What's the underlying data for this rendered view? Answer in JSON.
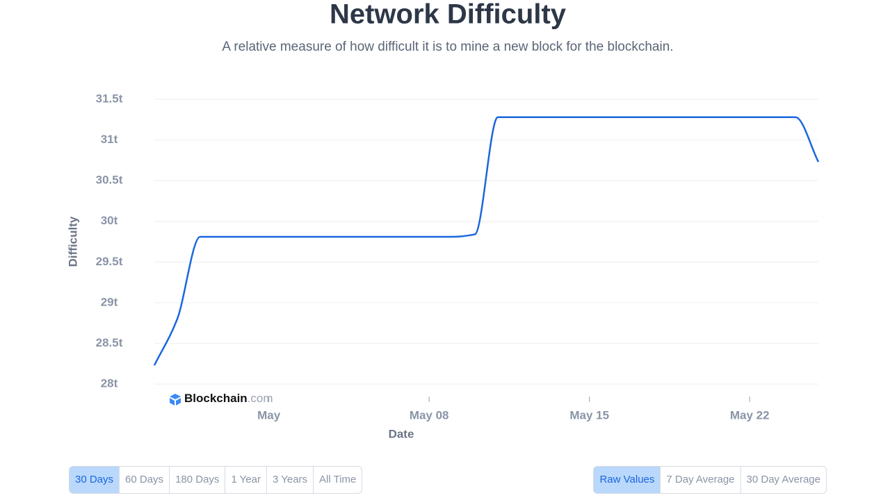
{
  "chart_data": {
    "type": "line",
    "title": "Network Difficulty",
    "subtitle": "A relative measure of how difficult it is to mine a new block for the blockchain.",
    "x_label": "Date",
    "y_label": "Difficulty",
    "watermark": {
      "brand": "Blockchain",
      "suffix": ".com"
    },
    "x": [
      -4,
      -3,
      -2,
      -1,
      0,
      1,
      2,
      3,
      4,
      5,
      6,
      7,
      8,
      9,
      10,
      11,
      12,
      13,
      14,
      15,
      16,
      17,
      18,
      19,
      20,
      21,
      22,
      23,
      24,
      25
    ],
    "series": [
      {
        "name": "Difficulty",
        "color": "#1a66e0",
        "values": [
          28.23,
          28.8,
          29.81,
          29.81,
          29.81,
          29.81,
          29.81,
          29.81,
          29.81,
          29.81,
          29.81,
          29.81,
          29.81,
          29.81,
          29.84,
          31.28,
          31.28,
          31.28,
          31.28,
          31.28,
          31.28,
          31.28,
          31.28,
          31.28,
          31.28,
          31.28,
          31.28,
          31.28,
          31.28,
          30.73
        ]
      }
    ],
    "xlim": [
      -4,
      25
    ],
    "xticks": [
      {
        "value": 1,
        "label": "May"
      },
      {
        "value": 8,
        "label": "May 08"
      },
      {
        "value": 15,
        "label": "May 15"
      },
      {
        "value": 22,
        "label": "May 22"
      }
    ],
    "ylim": [
      28,
      31.5
    ],
    "yticks": [
      {
        "value": 28,
        "label": "28t"
      },
      {
        "value": 28.5,
        "label": "28.5t"
      },
      {
        "value": 29,
        "label": "29t"
      },
      {
        "value": 29.5,
        "label": "29.5t"
      },
      {
        "value": 30,
        "label": "30t"
      },
      {
        "value": 30.5,
        "label": "30.5t"
      },
      {
        "value": 31,
        "label": "31t"
      },
      {
        "value": 31.5,
        "label": "31.5t"
      }
    ],
    "grid": true
  },
  "controls": {
    "ranges": [
      "30 Days",
      "60 Days",
      "180 Days",
      "1 Year",
      "3 Years",
      "All Time"
    ],
    "active_range": 0,
    "modes": [
      "Raw Values",
      "7 Day Average",
      "30 Day Average"
    ],
    "active_mode": 0
  }
}
